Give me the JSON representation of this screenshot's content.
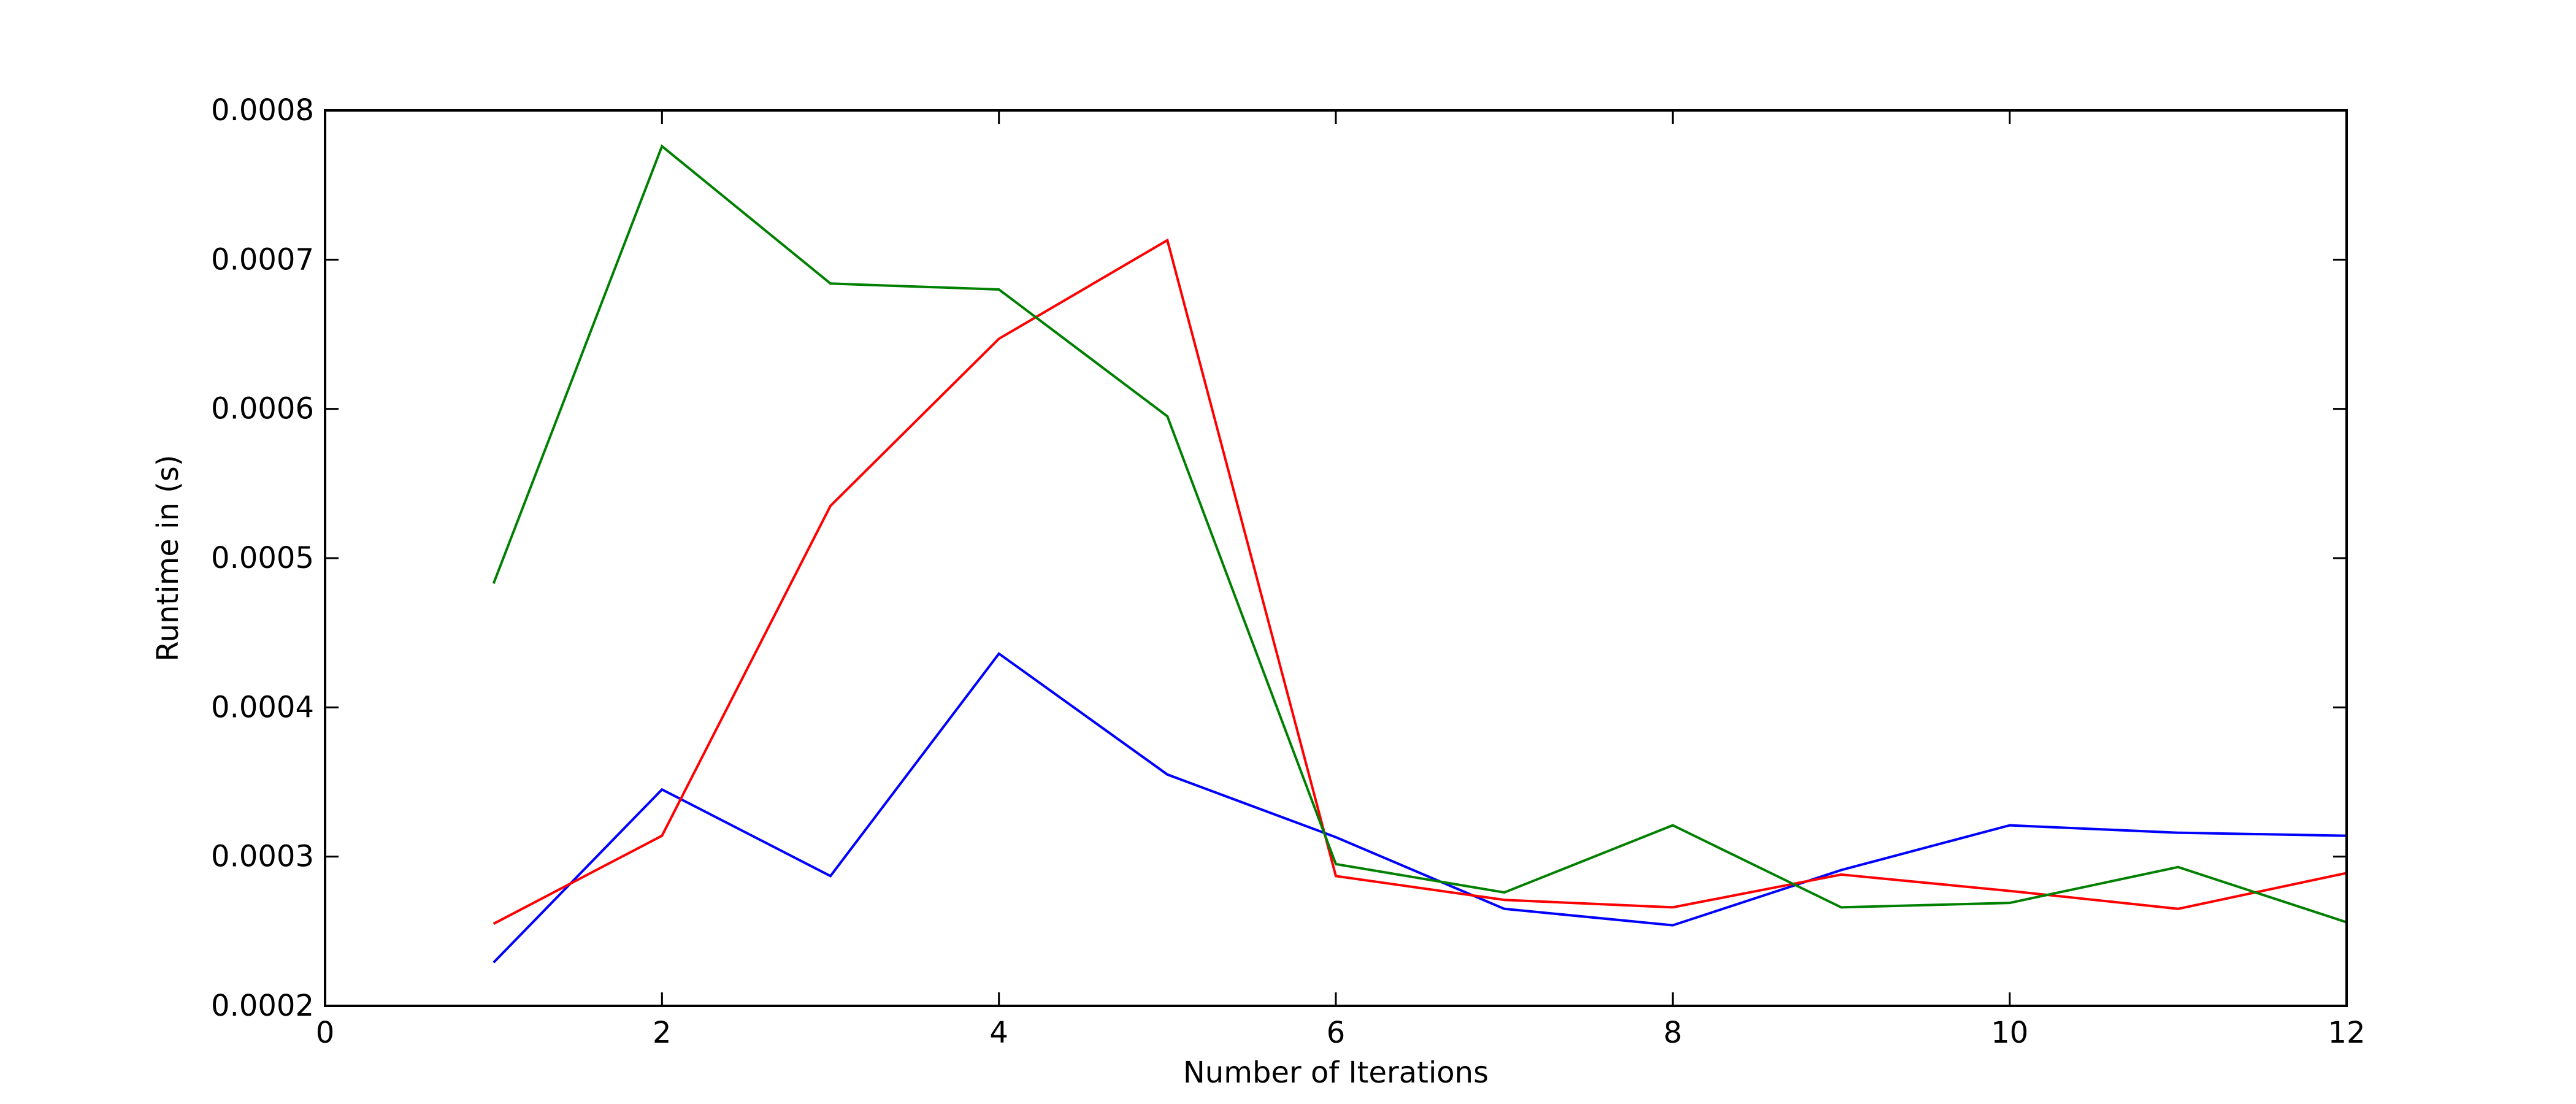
{
  "chart_data": {
    "type": "line",
    "title": "",
    "xlabel": "Number of Iterations",
    "ylabel": "Runtime in (s)",
    "xlim": [
      0,
      12
    ],
    "ylim": [
      0.0002,
      0.0008
    ],
    "xticks": [
      0,
      2,
      4,
      6,
      8,
      10,
      12
    ],
    "xtick_labels": [
      "0",
      "2",
      "4",
      "6",
      "8",
      "10",
      "12"
    ],
    "yticks": [
      0.0002,
      0.0003,
      0.0004,
      0.0005,
      0.0006,
      0.0007,
      0.0008
    ],
    "ytick_labels": [
      "0.0002",
      "0.0003",
      "0.0004",
      "0.0005",
      "0.0006",
      "0.0007",
      "0.0008"
    ],
    "grid": false,
    "x": [
      1,
      2,
      3,
      4,
      5,
      6,
      7,
      8,
      9,
      10,
      11,
      12
    ],
    "series": [
      {
        "color": "#0000ff",
        "values": [
          0.000229,
          0.000345,
          0.000287,
          0.000436,
          0.000355,
          0.000313,
          0.000265,
          0.000254,
          0.000291,
          0.000321,
          0.000316,
          0.000314
        ]
      },
      {
        "color": "#ff0000",
        "values": [
          0.000255,
          0.000314,
          0.000535,
          0.000647,
          0.000713,
          0.000287,
          0.000271,
          0.000266,
          0.000288,
          0.000277,
          0.000265,
          0.000289
        ]
      },
      {
        "color": "#008000",
        "values": [
          0.000483,
          0.000776,
          0.000684,
          0.00068,
          0.000595,
          0.000295,
          0.000276,
          0.000321,
          0.000266,
          0.000269,
          0.000293,
          0.000256
        ]
      }
    ]
  }
}
